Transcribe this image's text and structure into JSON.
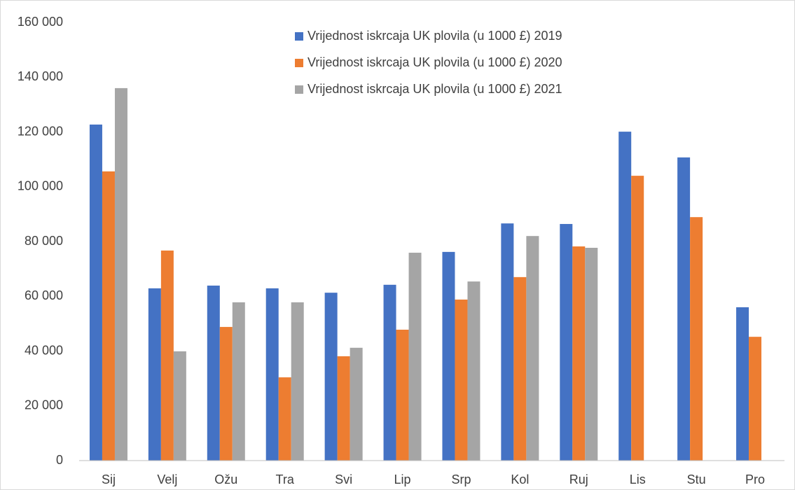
{
  "chart_data": {
    "type": "bar",
    "categories": [
      "Sij",
      "Velj",
      "Ožu",
      "Tra",
      "Svi",
      "Lip",
      "Srp",
      "Kol",
      "Ruj",
      "Lis",
      "Stu",
      "Pro"
    ],
    "series": [
      {
        "name": "Vrijednost iskrcaja UK plovila (u 1000 £) 2019",
        "color": "#4472c4",
        "values": [
          122700,
          62900,
          63900,
          62900,
          61300,
          64200,
          76200,
          86600,
          86400,
          120100,
          110700,
          56000
        ]
      },
      {
        "name": "Vrijednost iskrcaja UK plovila (u 1000 £) 2020",
        "color": "#ed7d31",
        "values": [
          105600,
          76700,
          48800,
          30400,
          38100,
          47800,
          58800,
          67000,
          78200,
          104000,
          88900,
          45200
        ]
      },
      {
        "name": "Vrijednost iskrcaja UK plovila (u 1000 £) 2021",
        "color": "#a5a5a5",
        "values": [
          136000,
          39900,
          57800,
          57800,
          41200,
          75900,
          65400,
          82000,
          77700,
          null,
          null,
          null
        ]
      }
    ],
    "ylim": [
      0,
      160000
    ],
    "yticks": [
      0,
      {
        "value": 20000,
        "label": "20 000"
      },
      {
        "value": 40000,
        "label": "40 000"
      },
      {
        "value": 60000,
        "label": "60 000"
      },
      {
        "value": 80000,
        "label": "80 000"
      },
      {
        "value": 100000,
        "label": "100 000"
      },
      {
        "value": 120000,
        "label": "120 000"
      },
      {
        "value": 140000,
        "label": "140 000"
      },
      {
        "value": 160000,
        "label": "160 000"
      }
    ],
    "grid": false,
    "legend": "top"
  }
}
